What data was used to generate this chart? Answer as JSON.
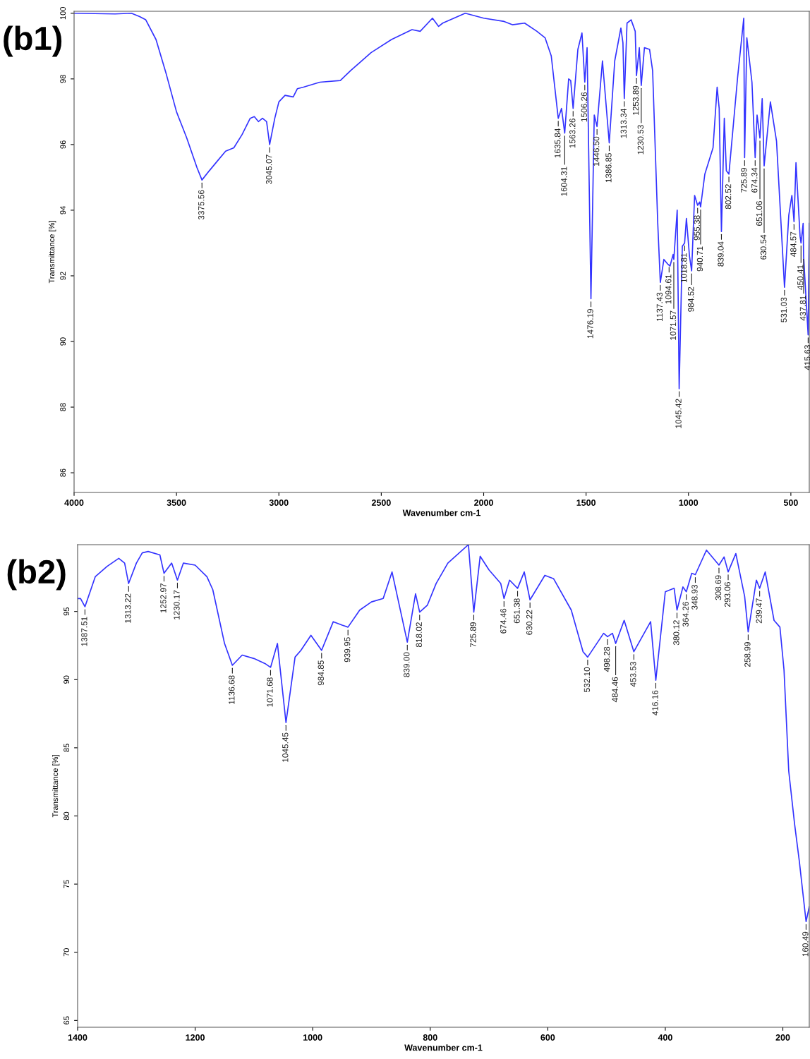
{
  "chart_data": [
    {
      "type": "line",
      "title": "(b1)",
      "xlabel": "Wavenumber cm-1",
      "ylabel": "Transmittance [%]",
      "xlim": [
        4000,
        410
      ],
      "ylim": [
        85.4,
        100.06
      ],
      "xticks": [
        4000,
        3500,
        3000,
        2500,
        2000,
        1500,
        1000,
        500
      ],
      "yticks": [
        86,
        88,
        90,
        92,
        94,
        96,
        98,
        100
      ],
      "grid": false,
      "legend": false,
      "marker": "none",
      "line_style": "solid",
      "series": [
        {
          "color": "#3333ff",
          "x": [
            4000,
            3800,
            3720,
            3680,
            3650,
            3600,
            3550,
            3500,
            3450,
            3400,
            3375.56,
            3340,
            3300,
            3260,
            3220,
            3180,
            3140,
            3120,
            3100,
            3080,
            3060,
            3045.07,
            3020,
            3000,
            2970,
            2930,
            2910,
            2880,
            2800,
            2700,
            2650,
            2550,
            2450,
            2350,
            2310,
            2250,
            2220,
            2200,
            2090,
            2000,
            1900,
            1860,
            1800,
            1740,
            1700,
            1670,
            1635.84,
            1620,
            1604.31,
            1585,
            1575,
            1563.26,
            1540,
            1520,
            1506.26,
            1495,
            1476.19,
            1460,
            1446.5,
            1420,
            1386.85,
            1360,
            1330,
            1320,
            1313.34,
            1300,
            1280,
            1260,
            1253.89,
            1240,
            1230.53,
            1215,
            1190,
            1175,
            1150,
            1137.43,
            1120,
            1100,
            1090,
            1075,
            1071.57,
            1055,
            1045.42,
            1030,
            1018.81,
            1010,
            995,
            984.52,
            970,
            955.38,
            945,
            940.71,
            920,
            880,
            860,
            850,
            839.04,
            825,
            815,
            802.52,
            760,
            730,
            725.89,
            715,
            690,
            674.34,
            665,
            651.06,
            640,
            630.54,
            600,
            570,
            531.03,
            510,
            495,
            484.57,
            475,
            455,
            450.41,
            440,
            437.81,
            415.63,
            410
          ],
          "values": [
            100.0,
            99.98,
            100.0,
            99.9,
            99.8,
            99.2,
            98.15,
            97.0,
            96.2,
            95.3,
            94.92,
            95.2,
            95.5,
            95.8,
            95.9,
            96.3,
            96.8,
            96.85,
            96.7,
            96.8,
            96.7,
            96.0,
            96.8,
            97.3,
            97.5,
            97.45,
            97.7,
            97.75,
            97.9,
            97.95,
            98.25,
            98.8,
            99.2,
            99.5,
            99.45,
            99.85,
            99.6,
            99.7,
            100.0,
            99.85,
            99.75,
            99.65,
            99.7,
            99.45,
            99.25,
            98.7,
            96.8,
            97.1,
            96.35,
            98.0,
            97.95,
            97.1,
            98.9,
            99.4,
            97.9,
            98.95,
            91.3,
            96.9,
            96.55,
            98.55,
            96.05,
            98.55,
            99.55,
            99.1,
            97.4,
            99.7,
            99.8,
            99.45,
            98.1,
            98.95,
            97.8,
            98.95,
            98.9,
            98.25,
            93.6,
            91.8,
            92.5,
            92.35,
            92.3,
            92.65,
            92.5,
            94.0,
            88.56,
            92.9,
            93.0,
            93.75,
            92.6,
            92.15,
            94.45,
            94.15,
            94.25,
            94.1,
            95.1,
            95.9,
            97.75,
            97.1,
            93.35,
            96.8,
            95.2,
            95.1,
            98.05,
            99.85,
            95.6,
            99.25,
            97.9,
            95.6,
            96.9,
            96.2,
            97.4,
            95.35,
            97.3,
            96.1,
            91.65,
            93.85,
            94.45,
            93.65,
            95.45,
            93.2,
            93.0,
            93.6,
            92.6,
            90.2,
            93.6
          ]
        }
      ],
      "annotations": [
        {
          "text": "3375.56",
          "x": 3375.56,
          "y": 94.92
        },
        {
          "text": "3045.07",
          "x": 3045.07,
          "y": 96.0
        },
        {
          "text": "1635.84",
          "x": 1635.84,
          "y": 96.8
        },
        {
          "text": "1604.31",
          "x": 1604.31,
          "y": 96.35
        },
        {
          "text": "1563.26",
          "x": 1563.26,
          "y": 97.1
        },
        {
          "text": "1506.26",
          "x": 1506.26,
          "y": 97.9
        },
        {
          "text": "1476.19",
          "x": 1476.19,
          "y": 91.3
        },
        {
          "text": "1446.50",
          "x": 1446.5,
          "y": 96.55
        },
        {
          "text": "1386.85",
          "x": 1386.85,
          "y": 96.05
        },
        {
          "text": "1313.34",
          "x": 1313.34,
          "y": 97.4
        },
        {
          "text": "1253.89",
          "x": 1253.89,
          "y": 98.1
        },
        {
          "text": "1230.53",
          "x": 1230.53,
          "y": 97.8
        },
        {
          "text": "1137.43",
          "x": 1137.43,
          "y": 91.8
        },
        {
          "text": "1094.61",
          "x": 1094.61,
          "y": 92.35
        },
        {
          "text": "1071.57",
          "x": 1071.57,
          "y": 92.5
        },
        {
          "text": "1045.42",
          "x": 1045.42,
          "y": 88.56
        },
        {
          "text": "1018.81",
          "x": 1018.81,
          "y": 93.0
        },
        {
          "text": "984.52",
          "x": 984.52,
          "y": 92.15
        },
        {
          "text": "955.38",
          "x": 955.38,
          "y": 94.15
        },
        {
          "text": "940.71",
          "x": 940.71,
          "y": 94.1
        },
        {
          "text": "839.04",
          "x": 839.04,
          "y": 93.35
        },
        {
          "text": "802.52",
          "x": 802.52,
          "y": 95.1
        },
        {
          "text": "725.89",
          "x": 725.89,
          "y": 95.6
        },
        {
          "text": "674.34",
          "x": 674.34,
          "y": 95.6
        },
        {
          "text": "651.06",
          "x": 651.06,
          "y": 96.2
        },
        {
          "text": "630.54",
          "x": 630.54,
          "y": 95.35
        },
        {
          "text": "531.03",
          "x": 531.03,
          "y": 91.65
        },
        {
          "text": "484.57",
          "x": 484.57,
          "y": 93.65
        },
        {
          "text": "450.41",
          "x": 450.41,
          "y": 93.0
        },
        {
          "text": "437.81",
          "x": 437.81,
          "y": 92.6
        },
        {
          "text": "415.63",
          "x": 415.63,
          "y": 90.2
        }
      ]
    },
    {
      "type": "line",
      "title": "(b2)",
      "xlabel": "Wavenumber cm-1",
      "ylabel": "Transmittance [%]",
      "xlim": [
        1400,
        155
      ],
      "ylim": [
        64.5,
        99.9
      ],
      "xticks": [
        1400,
        1200,
        1000,
        800,
        600,
        400,
        200
      ],
      "yticks": [
        65,
        70,
        75,
        80,
        85,
        90,
        95
      ],
      "grid": false,
      "legend": false,
      "marker": "none",
      "line_style": "solid",
      "series": [
        {
          "color": "#3333ff",
          "x": [
            1400,
            1395,
            1387.51,
            1370,
            1350,
            1330,
            1320,
            1313.22,
            1300,
            1290,
            1280,
            1260,
            1252.97,
            1240,
            1230.17,
            1220,
            1200,
            1180,
            1170,
            1150,
            1136.68,
            1120,
            1100,
            1080,
            1071.68,
            1060,
            1045.45,
            1030,
            1020,
            1003,
            984.85,
            965,
            950,
            939.95,
            920,
            900,
            880,
            865,
            839.0,
            825,
            818.02,
            805,
            790,
            770,
            735,
            725.89,
            715,
            700,
            680,
            674.46,
            665,
            651.38,
            640,
            630.22,
            605,
            590,
            560,
            540,
            532.1,
            505,
            498.28,
            490,
            484.46,
            470,
            453.53,
            425,
            416.16,
            400,
            385,
            380.12,
            370,
            364.26,
            355,
            348.93,
            330,
            308.69,
            300,
            293.06,
            280,
            265,
            258.99,
            245,
            239.47,
            230,
            215,
            205,
            198,
            190,
            180,
            172,
            160.49,
            155
          ],
          "values": [
            95.95,
            95.95,
            95.35,
            97.55,
            98.3,
            98.9,
            98.55,
            97.05,
            98.55,
            99.3,
            99.4,
            99.15,
            97.8,
            98.55,
            97.3,
            98.55,
            98.4,
            97.55,
            96.6,
            92.65,
            91.05,
            91.8,
            91.55,
            91.15,
            90.9,
            92.65,
            86.85,
            91.65,
            92.15,
            93.25,
            92.15,
            94.25,
            94.0,
            93.85,
            95.1,
            95.7,
            95.95,
            97.9,
            92.75,
            96.3,
            94.95,
            95.45,
            97.05,
            98.55,
            99.9,
            94.95,
            99.05,
            98.05,
            97.05,
            95.95,
            97.3,
            96.7,
            97.9,
            95.85,
            97.65,
            97.4,
            95.1,
            92.05,
            91.65,
            93.4,
            93.15,
            93.4,
            92.65,
            94.35,
            92.05,
            94.25,
            89.95,
            96.45,
            96.7,
            95.1,
            96.8,
            96.45,
            97.8,
            97.7,
            99.5,
            98.4,
            99.0,
            97.9,
            99.25,
            96.1,
            93.5,
            97.3,
            96.7,
            97.9,
            94.35,
            93.85,
            90.7,
            83.3,
            79.4,
            76.7,
            72.25,
            73.35
          ]
        }
      ],
      "annotations": [
        {
          "text": "1387.51",
          "x": 1387.51,
          "y": 95.35
        },
        {
          "text": "1313.22",
          "x": 1313.22,
          "y": 97.05
        },
        {
          "text": "1252.97",
          "x": 1252.97,
          "y": 97.8
        },
        {
          "text": "1230.17",
          "x": 1230.17,
          "y": 97.3
        },
        {
          "text": "1136.68",
          "x": 1136.68,
          "y": 91.05
        },
        {
          "text": "1071.68",
          "x": 1071.68,
          "y": 90.9
        },
        {
          "text": "1045.45",
          "x": 1045.45,
          "y": 86.85
        },
        {
          "text": "984.85",
          "x": 984.85,
          "y": 92.15
        },
        {
          "text": "939.95",
          "x": 939.95,
          "y": 93.85
        },
        {
          "text": "839.00",
          "x": 839.0,
          "y": 92.75
        },
        {
          "text": "818.02",
          "x": 818.02,
          "y": 94.95
        },
        {
          "text": "725.89",
          "x": 725.89,
          "y": 94.95
        },
        {
          "text": "674.46",
          "x": 674.46,
          "y": 95.95
        },
        {
          "text": "651.38",
          "x": 651.38,
          "y": 96.7
        },
        {
          "text": "630.22",
          "x": 630.22,
          "y": 95.85
        },
        {
          "text": "532.10",
          "x": 532.1,
          "y": 91.65
        },
        {
          "text": "498.28",
          "x": 498.28,
          "y": 93.15
        },
        {
          "text": "484.46",
          "x": 484.46,
          "y": 92.65
        },
        {
          "text": "453.53",
          "x": 453.53,
          "y": 92.05
        },
        {
          "text": "416.16",
          "x": 416.16,
          "y": 89.95
        },
        {
          "text": "380.12",
          "x": 380.12,
          "y": 95.1
        },
        {
          "text": "364.26",
          "x": 364.26,
          "y": 96.45
        },
        {
          "text": "348.93",
          "x": 348.93,
          "y": 97.7
        },
        {
          "text": "308.69",
          "x": 308.69,
          "y": 98.4
        },
        {
          "text": "293.06",
          "x": 293.06,
          "y": 97.9
        },
        {
          "text": "258.99",
          "x": 258.99,
          "y": 93.5
        },
        {
          "text": "239.47",
          "x": 239.47,
          "y": 96.7
        },
        {
          "text": "160.49",
          "x": 160.49,
          "y": 72.25
        }
      ]
    }
  ]
}
